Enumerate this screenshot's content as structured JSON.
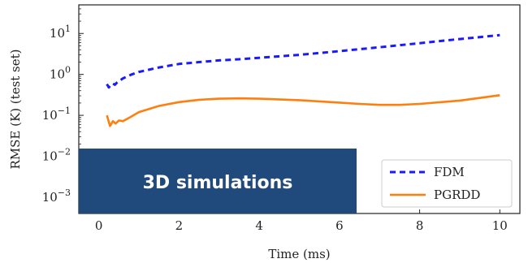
{
  "chart_data": {
    "type": "line",
    "xlabel": "Time (ms)",
    "ylabel": "RMSE (K) (test set)",
    "yscale": "log",
    "xlim": [
      -0.5,
      10.5
    ],
    "ylim": [
      0.0004,
      50
    ],
    "xticks": [
      0,
      2,
      4,
      6,
      8,
      10
    ],
    "yticks": [
      {
        "value": 10,
        "base": "10",
        "exp": "1"
      },
      {
        "value": 1,
        "base": "10",
        "exp": "0"
      },
      {
        "value": 0.1,
        "base": "10",
        "exp": "−1"
      },
      {
        "value": 0.01,
        "base": "10",
        "exp": "−2"
      },
      {
        "value": 0.001,
        "base": "10",
        "exp": "−3"
      }
    ],
    "grid": false,
    "legend_position": "bottom-right",
    "series": [
      {
        "name": "FDM",
        "color": "#1a1aff",
        "style": "dashed",
        "points": [
          [
            0.2,
            0.58
          ],
          [
            0.25,
            0.48
          ],
          [
            0.3,
            0.56
          ],
          [
            0.35,
            0.6
          ],
          [
            0.4,
            0.56
          ],
          [
            0.45,
            0.63
          ],
          [
            0.6,
            0.8
          ],
          [
            0.8,
            0.98
          ],
          [
            1.0,
            1.15
          ],
          [
            1.5,
            1.48
          ],
          [
            2,
            1.8
          ],
          [
            2.5,
            2.0
          ],
          [
            3,
            2.2
          ],
          [
            3.5,
            2.35
          ],
          [
            4,
            2.55
          ],
          [
            5,
            3.0
          ],
          [
            6,
            3.7
          ],
          [
            7,
            4.6
          ],
          [
            8,
            5.8
          ],
          [
            9,
            7.3
          ],
          [
            10,
            9.1
          ]
        ]
      },
      {
        "name": "PGRDD",
        "color": "#ff7f0e",
        "style": "solid",
        "points": [
          [
            0.2,
            0.1
          ],
          [
            0.28,
            0.055
          ],
          [
            0.35,
            0.072
          ],
          [
            0.42,
            0.063
          ],
          [
            0.5,
            0.075
          ],
          [
            0.6,
            0.072
          ],
          [
            0.8,
            0.092
          ],
          [
            1.0,
            0.12
          ],
          [
            1.5,
            0.17
          ],
          [
            2,
            0.21
          ],
          [
            2.5,
            0.24
          ],
          [
            3,
            0.255
          ],
          [
            3.5,
            0.26
          ],
          [
            4,
            0.255
          ],
          [
            5,
            0.235
          ],
          [
            6,
            0.205
          ],
          [
            6.5,
            0.19
          ],
          [
            7,
            0.18
          ],
          [
            7.5,
            0.18
          ],
          [
            8,
            0.19
          ],
          [
            9,
            0.23
          ],
          [
            10,
            0.31
          ]
        ]
      }
    ]
  },
  "overlay": {
    "label": "3D simulations",
    "color": "#204a7c"
  }
}
